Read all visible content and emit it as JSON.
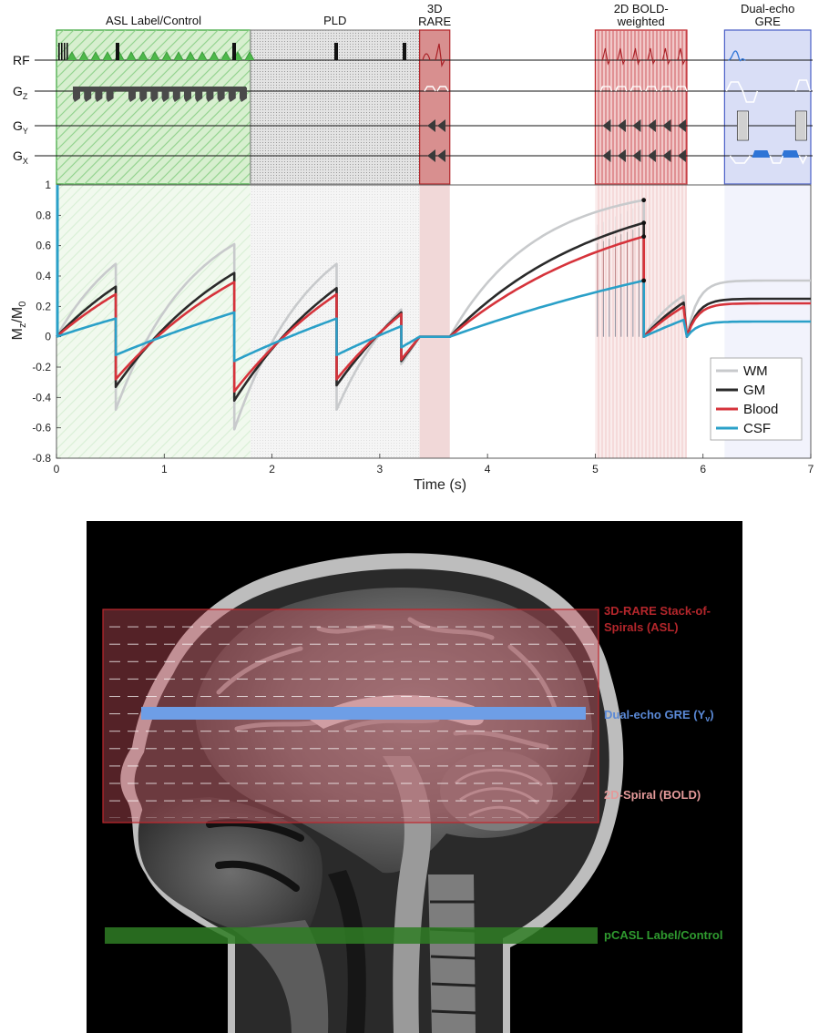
{
  "sequence": {
    "blocks": [
      {
        "key": "asl",
        "line1": "ASL Label/Control",
        "line2": "",
        "t0": 0,
        "t1": 1.8,
        "fill": "#d7efcf",
        "stroke": "#3aa53a",
        "pattern": "hatch-green"
      },
      {
        "key": "pld",
        "line1": "PLD",
        "line2": "",
        "t0": 1.8,
        "t1": 3.37,
        "fill": "#e3e3e3",
        "stroke": "#8c8c8c",
        "pattern": "dots-gray"
      },
      {
        "key": "rare",
        "line1": "3D",
        "line2": "RARE",
        "t0": 3.37,
        "t1": 3.65,
        "fill": "#d88f8f",
        "stroke": "#b3262b",
        "pattern": "none"
      },
      {
        "key": "bold",
        "line1": "2D BOLD-",
        "line2": "weighted",
        "t0": 5.0,
        "t1": 5.85,
        "fill": "#f1c8c8",
        "stroke": "#c0272d",
        "pattern": "vlines-red"
      },
      {
        "key": "gre",
        "line1": "Dual-echo",
        "line2": "GRE",
        "t0": 6.2,
        "t1": 7.0,
        "fill": "#d9def6",
        "stroke": "#4a5fc6",
        "pattern": "none"
      }
    ],
    "channels": [
      {
        "key": "rf",
        "main": "RF",
        "sub": ""
      },
      {
        "key": "gz",
        "main": "G",
        "sub": "Z"
      },
      {
        "key": "gy",
        "main": "G",
        "sub": "Y"
      },
      {
        "key": "gx",
        "main": "G",
        "sub": "X"
      }
    ]
  },
  "chart_data": {
    "type": "line",
    "xlabel": "Time (s)",
    "ylabel_main": "M",
    "ylabel_sub1": "z",
    "ylabel_mid": "/M",
    "ylabel_sub2": "0",
    "xlim": [
      0,
      7
    ],
    "ylim": [
      -0.8,
      1
    ],
    "xticks": [
      "0",
      "1",
      "2",
      "3",
      "4",
      "5",
      "6",
      "7"
    ],
    "yticks": [
      "-0.8",
      "-0.6",
      "-0.4",
      "-0.2",
      "0",
      "0.2",
      "0.4",
      "0.6",
      "0.8",
      "1"
    ],
    "legend_position": "bottom-right",
    "series": [
      {
        "name": "WM",
        "color": "#c8cacc",
        "t1": 0.8,
        "peaks": [
          0.48,
          0.61,
          0.48,
          0.18
        ],
        "bold_peak": 0.9,
        "gre_level": 0.37
      },
      {
        "name": "GM",
        "color": "#2a2a2a",
        "t1": 1.4,
        "peaks": [
          0.33,
          0.42,
          0.32,
          0.16
        ],
        "bold_peak": 0.75,
        "gre_level": 0.25
      },
      {
        "name": "Blood",
        "color": "#d6333b",
        "t1": 1.65,
        "peaks": [
          0.28,
          0.36,
          0.28,
          0.15
        ],
        "bold_peak": 0.66,
        "gre_level": 0.22
      },
      {
        "name": "CSF",
        "color": "#2aa0c8",
        "t1": 4.0,
        "peaks": [
          0.12,
          0.16,
          0.12,
          0.07
        ],
        "bold_peak": 0.37,
        "gre_level": 0.1
      }
    ]
  },
  "anatomy": {
    "labels": [
      {
        "key": "rare",
        "line1": "3D-RARE Stack-of-",
        "line2": "Spirals (ASL)",
        "color": "#b3262b"
      },
      {
        "key": "gre",
        "line1": "Dual-echo GRE (Y",
        "sub": "v",
        "line1_end": ")",
        "color": "#5a89d6"
      },
      {
        "key": "bold",
        "line1": "2D-Spiral (BOLD)",
        "line2": "",
        "color": "#e49a9a"
      },
      {
        "key": "pcasl",
        "line1": "pCASL Label/Control",
        "line2": "",
        "color": "#2f9a2f"
      }
    ]
  }
}
